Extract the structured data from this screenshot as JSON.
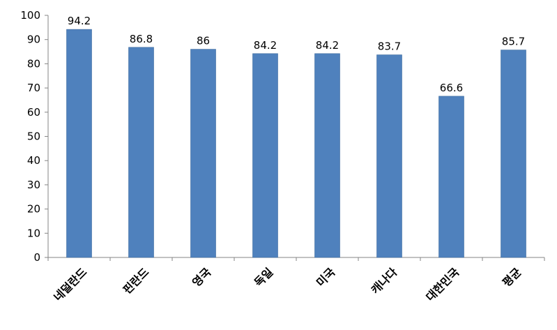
{
  "chart_data": {
    "type": "bar",
    "title": "",
    "xlabel": "",
    "ylabel": "",
    "categories": [
      "네덜란드",
      "핀란드",
      "영국",
      "독일",
      "미국",
      "캐나다",
      "대한민국",
      "평균"
    ],
    "values": [
      94.2,
      86.8,
      86,
      84.2,
      84.2,
      83.7,
      66.6,
      85.7
    ],
    "data_labels": [
      "94.2",
      "86.8",
      "86",
      "84.2",
      "84.2",
      "83.7",
      "66.6",
      "85.7"
    ],
    "ylim": [
      0,
      100
    ],
    "yticks": [
      0,
      10,
      20,
      30,
      40,
      50,
      60,
      70,
      80,
      90,
      100
    ],
    "ytick_labels": [
      "0",
      "10",
      "20",
      "30",
      "40",
      "50",
      "60",
      "70",
      "80",
      "90",
      "100"
    ],
    "grid": false,
    "legend": "none",
    "bar_color": "#4F81BD"
  }
}
